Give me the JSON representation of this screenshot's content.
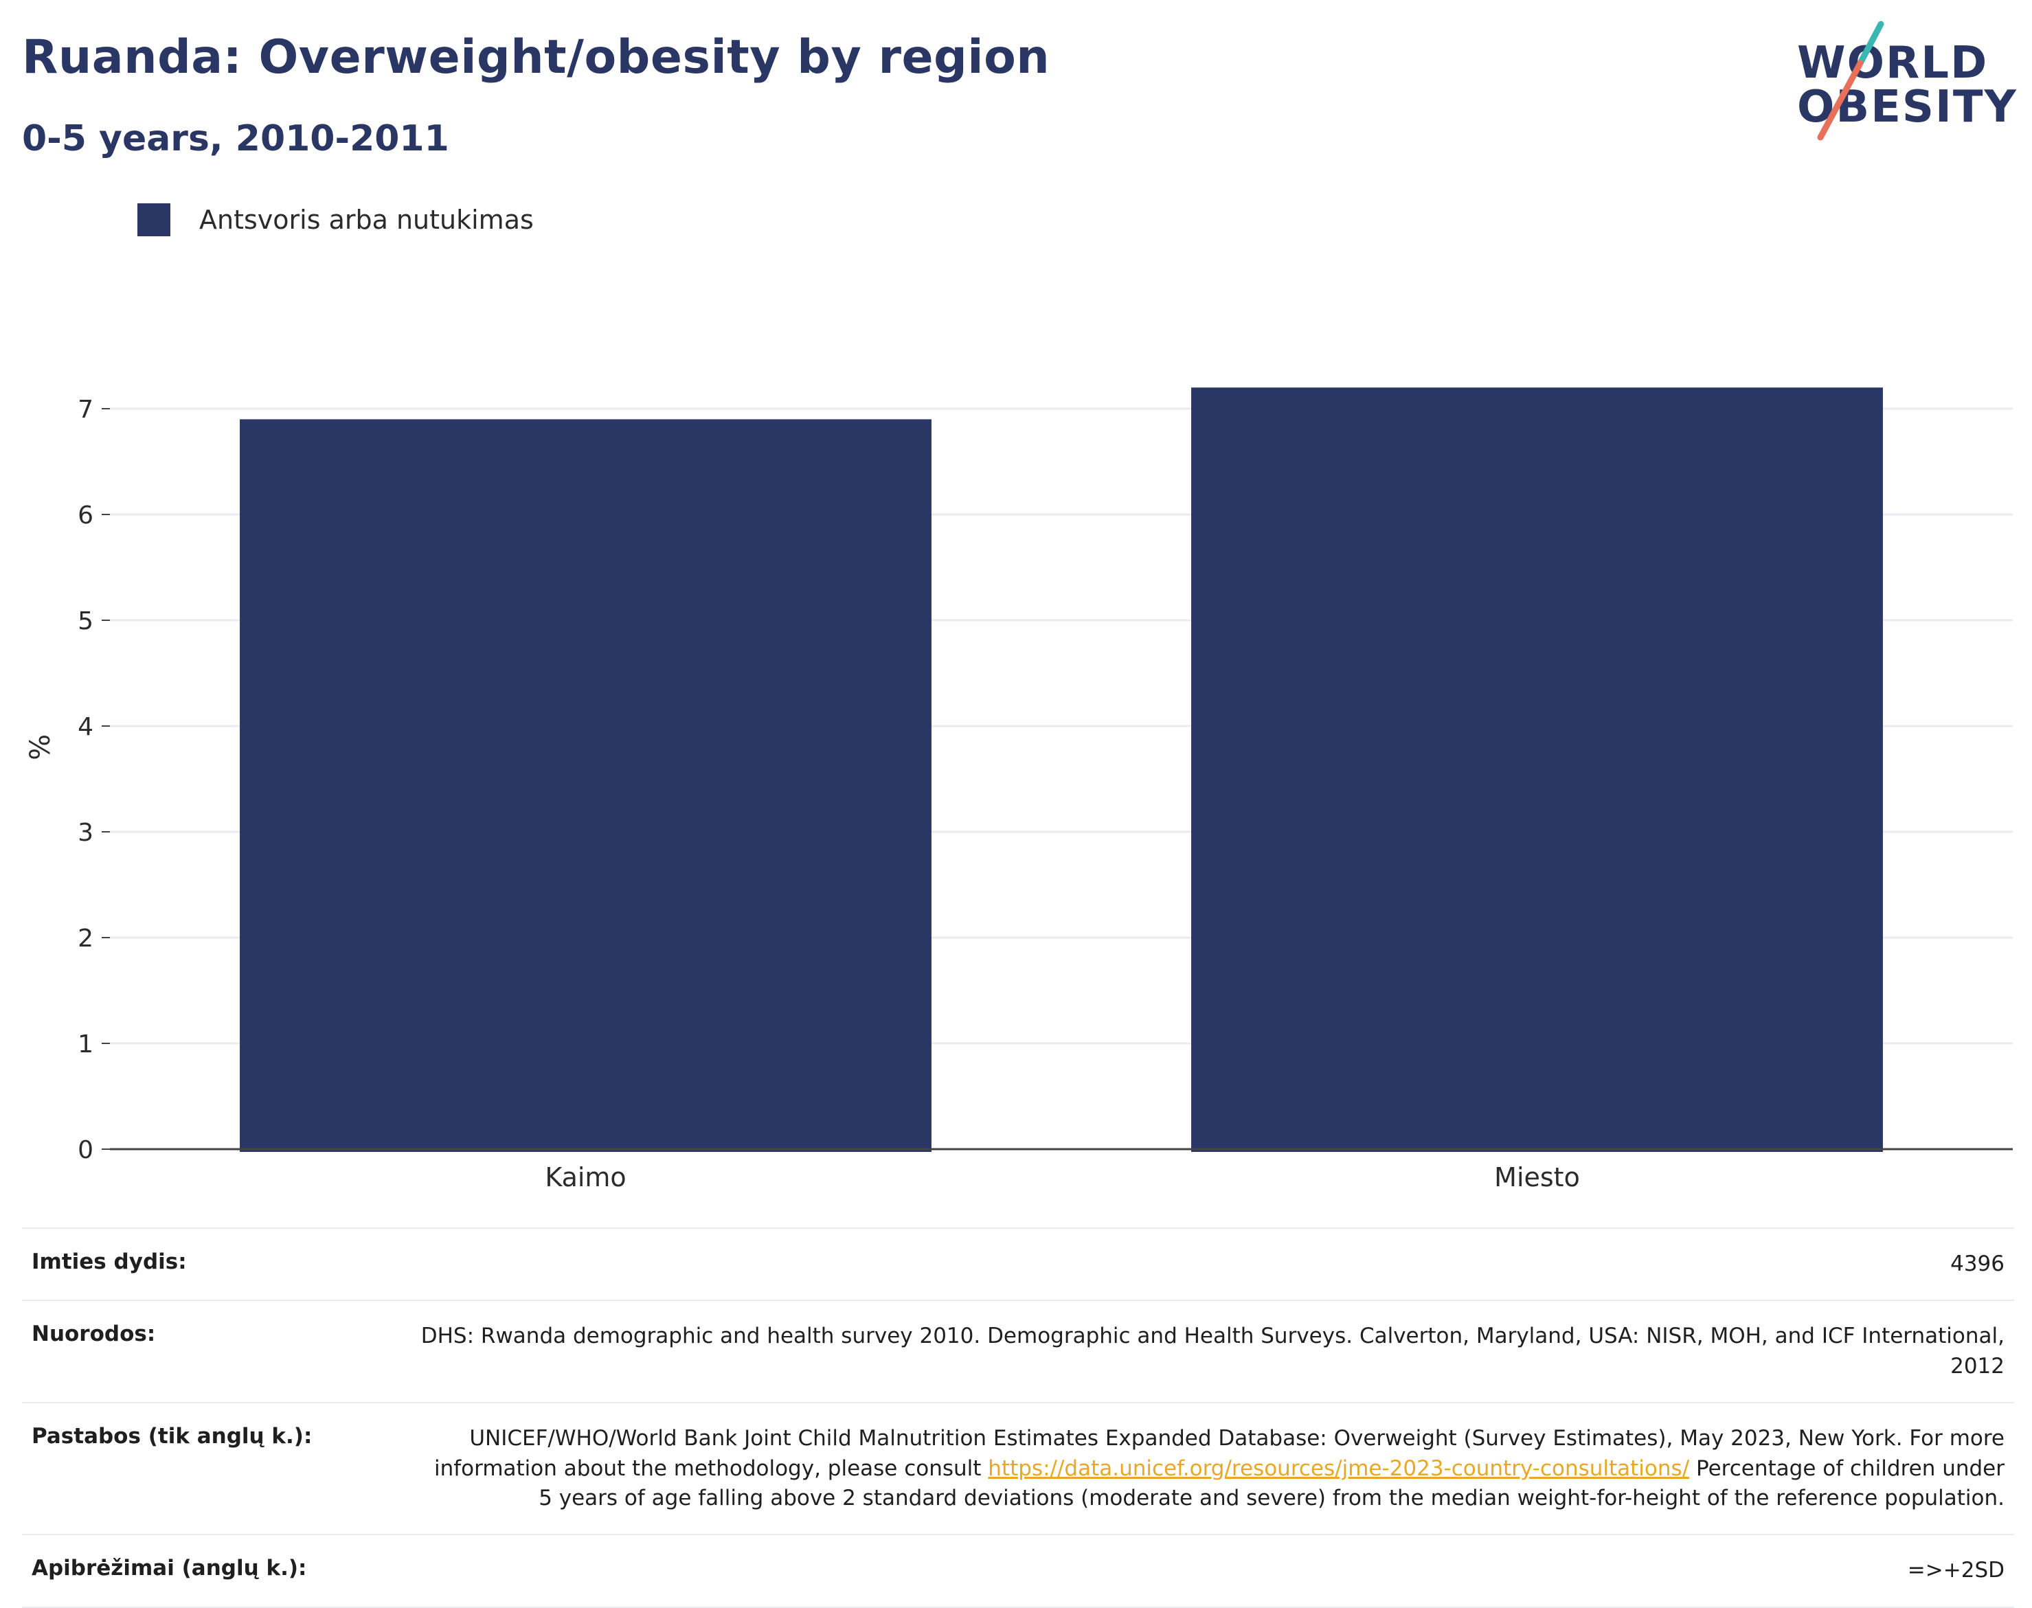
{
  "header": {
    "title": "Ruanda: Overweight/obesity by region",
    "subtitle": "0-5 years, 2010-2011"
  },
  "logo": {
    "line1": "WORLD",
    "line2": "OBESITY"
  },
  "legend": {
    "label": "Antsvoris arba nutukimas",
    "color": "#2a3663"
  },
  "chart_data": {
    "type": "bar",
    "categories": [
      "Kaimo",
      "Miesto"
    ],
    "series": [
      {
        "name": "Antsvoris arba nutukimas",
        "values": [
          6.9,
          7.2
        ]
      }
    ],
    "ylabel": "%",
    "xlabel": "",
    "ylim": [
      0,
      7.2
    ],
    "yticks": [
      0,
      1,
      2,
      3,
      4,
      5,
      6,
      7
    ],
    "grid": true,
    "legend_position": "top-left",
    "bar_color": "#2a3663"
  },
  "info": {
    "sample_label": "Imties dydis:",
    "sample_value": "4396",
    "refs_label": "Nuorodos:",
    "refs_value": "DHS: Rwanda demographic and health survey 2010. Demographic and Health Surveys. Calverton, Maryland, USA: NISR, MOH, and ICF International, 2012",
    "notes_label": "Pastabos (tik anglų k.):",
    "notes_text1": "UNICEF/WHO/World Bank Joint Child Malnutrition Estimates Expanded Database: Overweight (Survey Estimates), May 2023, New York. For more information about the methodology, please consult ",
    "notes_link": "https://data.unicef.org/resources/jme-2023-country-consultations/",
    "notes_text2": " Percentage of children under 5 years of age falling above 2 standard deviations (moderate and severe) from the median weight-for-height of the reference population.",
    "defs_label": "Apibrėžimai (anglų k.):",
    "defs_value": "=>+2SD"
  }
}
